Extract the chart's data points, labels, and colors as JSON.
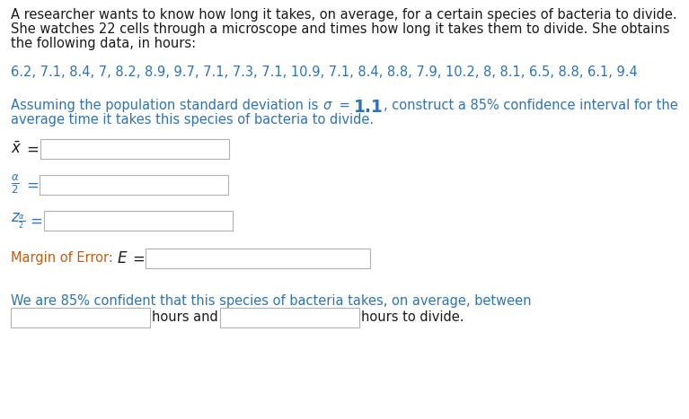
{
  "bg_color": "#ffffff",
  "black": "#1a1a1a",
  "blue": "#2e74b5",
  "orange": "#c55a11",
  "para1_line1": "A researcher wants to know how long it takes, on average, for a certain species of bacteria to divide.",
  "para1_line2": "She watches 22 cells through a microscope and times how long it takes them to divide. She obtains",
  "para1_line3": "the following data, in hours:",
  "data_line": "6.2, 7.1, 8.4, 7, 8.2, 8.9, 9.7, 7.1, 7.3, 7.1, 10.9, 7.1, 8.4, 8.8, 7.9, 10.2, 8, 8.1, 6.5, 8.8, 6.1, 9.4",
  "para3_line2": "average time it takes this species of bacteria to divide.",
  "label_confident": "We are 85% confident that this species of bacteria takes, on average, between",
  "label_hours_and": "hours and",
  "label_hours_divide": "hours to divide.",
  "fs": 10.5,
  "fs_math": 12,
  "lh": 16,
  "box_edge": "#b0b0b0",
  "box_face": "#ffffff"
}
